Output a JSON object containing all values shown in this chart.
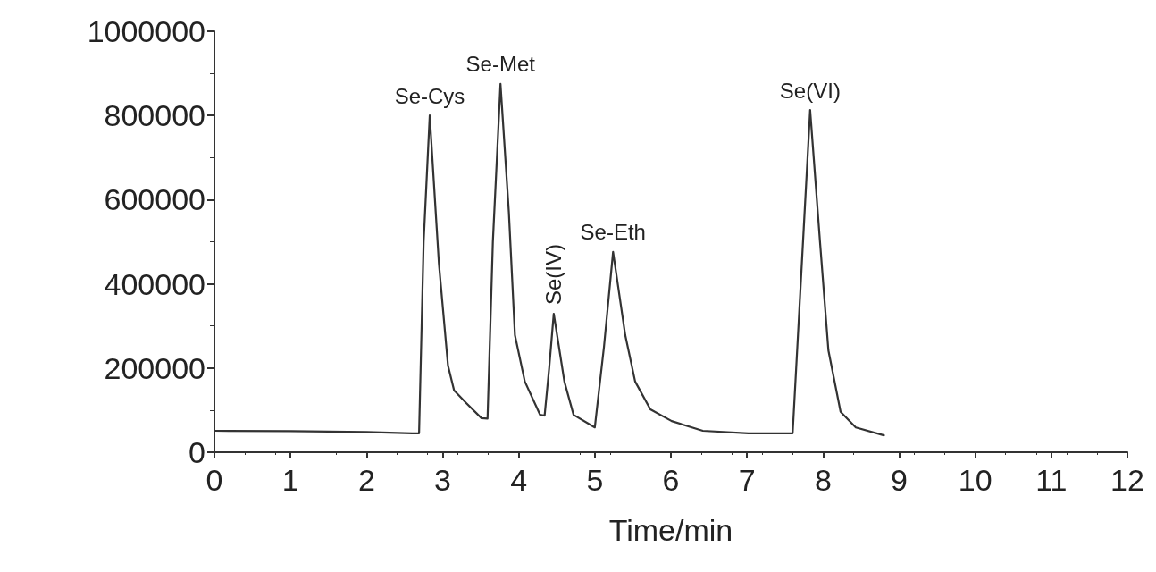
{
  "chart_data": {
    "type": "line",
    "xlabel": "Time/min",
    "xlim": [
      0,
      12
    ],
    "xticks": [
      0,
      1,
      2,
      3,
      4,
      5,
      6,
      7,
      8,
      9,
      10,
      11,
      12
    ],
    "ylim": [
      0,
      1000000
    ],
    "yticks": [
      0,
      200000,
      400000,
      600000,
      800000,
      1000000
    ],
    "grid": false,
    "marker": "none",
    "line_style": "solid",
    "series": [
      {
        "color": "#333333",
        "x": [
          0,
          1,
          2,
          2.6,
          2.69,
          2.75,
          2.83,
          2.95,
          3.07,
          3.15,
          3.31,
          3.51,
          3.59,
          3.66,
          3.76,
          3.87,
          3.95,
          4.08,
          4.28,
          4.34,
          4.4,
          4.46,
          4.6,
          4.72,
          5.0,
          5.12,
          5.24,
          5.4,
          5.53,
          5.73,
          6.01,
          6.42,
          7.02,
          7.54,
          7.6,
          7.67,
          7.83,
          7.96,
          8.07,
          8.23,
          8.43,
          8.8
        ],
        "values": [
          51000,
          50000,
          48000,
          45000,
          45000,
          500000,
          800000,
          450000,
          206000,
          147000,
          117000,
          81000,
          80000,
          500000,
          875000,
          571000,
          278000,
          168000,
          89000,
          87000,
          200000,
          329000,
          168000,
          89000,
          59000,
          250000,
          476000,
          278000,
          168000,
          102000,
          74000,
          51000,
          45000,
          45000,
          45000,
          278000,
          813000,
          499000,
          242000,
          96000,
          59000,
          40000
        ]
      }
    ],
    "annotations": [
      {
        "text": "Se-Cys",
        "x": 2.83,
        "y": 800000
      },
      {
        "text": "Se-Met",
        "x": 3.76,
        "y": 875000
      },
      {
        "text": "Se(IV)",
        "x": 4.46,
        "y": 329000
      },
      {
        "text": "Se-Eth",
        "x": 5.24,
        "y": 476000
      },
      {
        "text": "Se(VI)",
        "x": 7.83,
        "y": 813000
      }
    ]
  }
}
